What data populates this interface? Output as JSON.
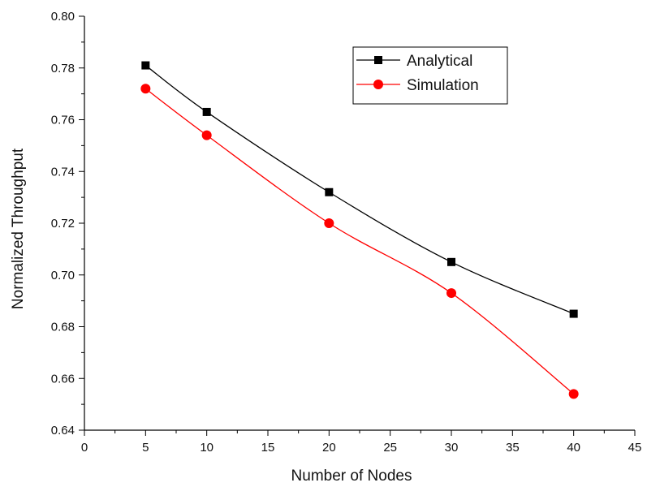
{
  "chart_data": {
    "type": "line",
    "title": "",
    "xlabel": "Number of Nodes",
    "ylabel": "Normalized Throughput",
    "xlim": [
      0,
      45
    ],
    "ylim": [
      0.64,
      0.8
    ],
    "x_ticks": [
      0,
      5,
      10,
      15,
      20,
      25,
      30,
      35,
      40,
      45
    ],
    "x_tick_labels": [
      "0",
      "5",
      "10",
      "15",
      "20",
      "25",
      "30",
      "35",
      "40",
      "45"
    ],
    "y_ticks": [
      0.64,
      0.66,
      0.68,
      0.7,
      0.72,
      0.74,
      0.76,
      0.78,
      0.8
    ],
    "y_tick_labels": [
      "0.64",
      "0.66",
      "0.68",
      "0.70",
      "0.72",
      "0.74",
      "0.76",
      "0.78",
      "0.80"
    ],
    "grid": false,
    "legend_position": "top-right",
    "x": [
      5,
      10,
      20,
      30,
      40
    ],
    "series": [
      {
        "name": "Analytical",
        "marker": "square",
        "color": "#000000",
        "values": [
          0.781,
          0.763,
          0.732,
          0.705,
          0.685
        ]
      },
      {
        "name": "Simulation",
        "marker": "circle",
        "color": "#ff0000",
        "values": [
          0.772,
          0.754,
          0.72,
          0.693,
          0.654
        ]
      }
    ]
  }
}
